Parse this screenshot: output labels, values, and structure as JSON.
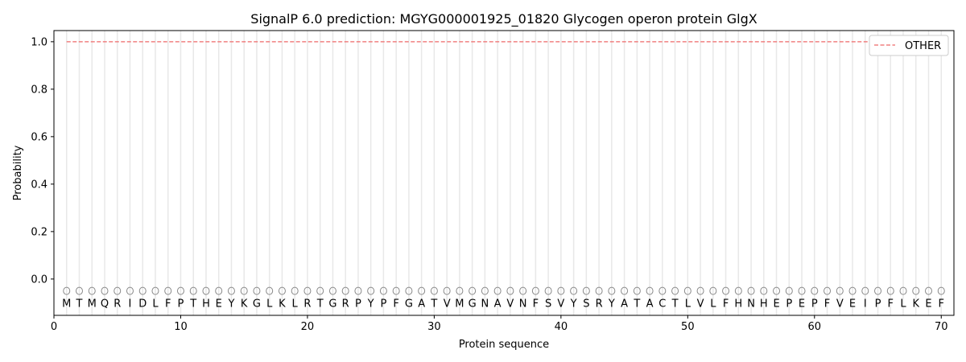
{
  "chart_data": {
    "type": "line",
    "title": "SignalP 6.0 prediction: MGYG000001925_01820 Glycogen operon protein GlgX",
    "xlabel": "Protein sequence",
    "ylabel": "Probability",
    "xlim": [
      0,
      71
    ],
    "ylim": [
      -0.153,
      1.047
    ],
    "xticks": [
      0,
      10,
      20,
      30,
      40,
      50,
      60,
      70
    ],
    "yticks": [
      0.0,
      0.2,
      0.4,
      0.6,
      0.8,
      1.0
    ],
    "ytick_labels": [
      "0.0",
      "0.2",
      "0.4",
      "0.6",
      "0.8",
      "1.0"
    ],
    "legend_position": "top-right",
    "sequence": "MTMQRIDLFPTHEYKGLKLRTGRPYPFGATVMGNAVNFSVYSRYATACTLVLFHNHEPEPFVEIPFLKEF",
    "prediction_label": "O",
    "series": [
      {
        "name": "OTHER",
        "color": "#f08080",
        "style": "dashed",
        "x_start": 1,
        "x_end": 70,
        "value": 1.0
      }
    ],
    "grid_color": "#e8e8e8"
  }
}
